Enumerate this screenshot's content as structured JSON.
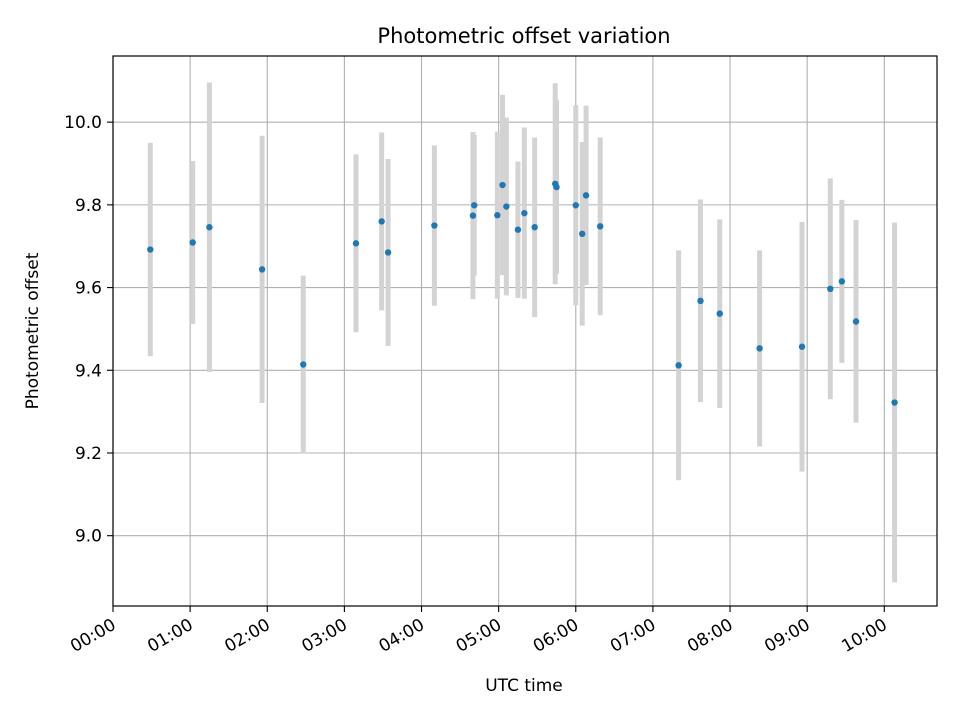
{
  "chart_data": {
    "type": "scatter",
    "title": "Photometric offset variation",
    "xlabel": "UTC time",
    "ylabel": "Photometric offset",
    "x_unit": "hours (UTC)",
    "xlim": [
      "00:00",
      "10:41"
    ],
    "ylim": [
      8.83,
      10.16
    ],
    "grid": true,
    "x_ticks": [
      "00:00",
      "01:00",
      "02:00",
      "03:00",
      "04:00",
      "05:00",
      "06:00",
      "07:00",
      "08:00",
      "09:00",
      "10:00"
    ],
    "y_ticks": [
      "9.0",
      "9.2",
      "9.4",
      "9.6",
      "9.8",
      "10.0"
    ],
    "colors": {
      "point": "#1f77b4",
      "errorbar": "#d3d3d3",
      "grid": "#b0b0b0"
    },
    "points": [
      {
        "x": "00:29",
        "y": 9.692,
        "err": 0.258
      },
      {
        "x": "01:02",
        "y": 9.709,
        "err": 0.197
      },
      {
        "x": "01:15",
        "y": 9.746,
        "err": 0.35
      },
      {
        "x": "01:56",
        "y": 9.644,
        "err": 0.323
      },
      {
        "x": "02:28",
        "y": 9.414,
        "err": 0.215
      },
      {
        "x": "03:09",
        "y": 9.707,
        "err": 0.215
      },
      {
        "x": "03:29",
        "y": 9.76,
        "err": 0.215
      },
      {
        "x": "03:34",
        "y": 9.685,
        "err": 0.226
      },
      {
        "x": "04:10",
        "y": 9.75,
        "err": 0.194
      },
      {
        "x": "04:40",
        "y": 9.774,
        "err": 0.202
      },
      {
        "x": "04:41",
        "y": 9.799,
        "err": 0.17
      },
      {
        "x": "04:59",
        "y": 9.775,
        "err": 0.202
      },
      {
        "x": "05:03",
        "y": 9.848,
        "err": 0.218
      },
      {
        "x": "05:06",
        "y": 9.796,
        "err": 0.215
      },
      {
        "x": "05:15",
        "y": 9.74,
        "err": 0.165
      },
      {
        "x": "05:20",
        "y": 9.78,
        "err": 0.207
      },
      {
        "x": "05:28",
        "y": 9.746,
        "err": 0.217
      },
      {
        "x": "05:44",
        "y": 9.851,
        "err": 0.243
      },
      {
        "x": "05:45",
        "y": 9.843,
        "err": 0.21
      },
      {
        "x": "06:00",
        "y": 9.799,
        "err": 0.242
      },
      {
        "x": "06:05",
        "y": 9.73,
        "err": 0.222
      },
      {
        "x": "06:08",
        "y": 9.823,
        "err": 0.217
      },
      {
        "x": "06:19",
        "y": 9.748,
        "err": 0.215
      },
      {
        "x": "07:20",
        "y": 9.412,
        "err": 0.278
      },
      {
        "x": "07:37",
        "y": 9.568,
        "err": 0.245
      },
      {
        "x": "07:52",
        "y": 9.537,
        "err": 0.228
      },
      {
        "x": "08:23",
        "y": 9.453,
        "err": 0.237
      },
      {
        "x": "08:56",
        "y": 9.457,
        "err": 0.302
      },
      {
        "x": "09:18",
        "y": 9.597,
        "err": 0.267
      },
      {
        "x": "09:27",
        "y": 9.615,
        "err": 0.197
      },
      {
        "x": "09:38",
        "y": 9.518,
        "err": 0.245
      },
      {
        "x": "10:08",
        "y": 9.322,
        "err": 0.435
      }
    ]
  }
}
